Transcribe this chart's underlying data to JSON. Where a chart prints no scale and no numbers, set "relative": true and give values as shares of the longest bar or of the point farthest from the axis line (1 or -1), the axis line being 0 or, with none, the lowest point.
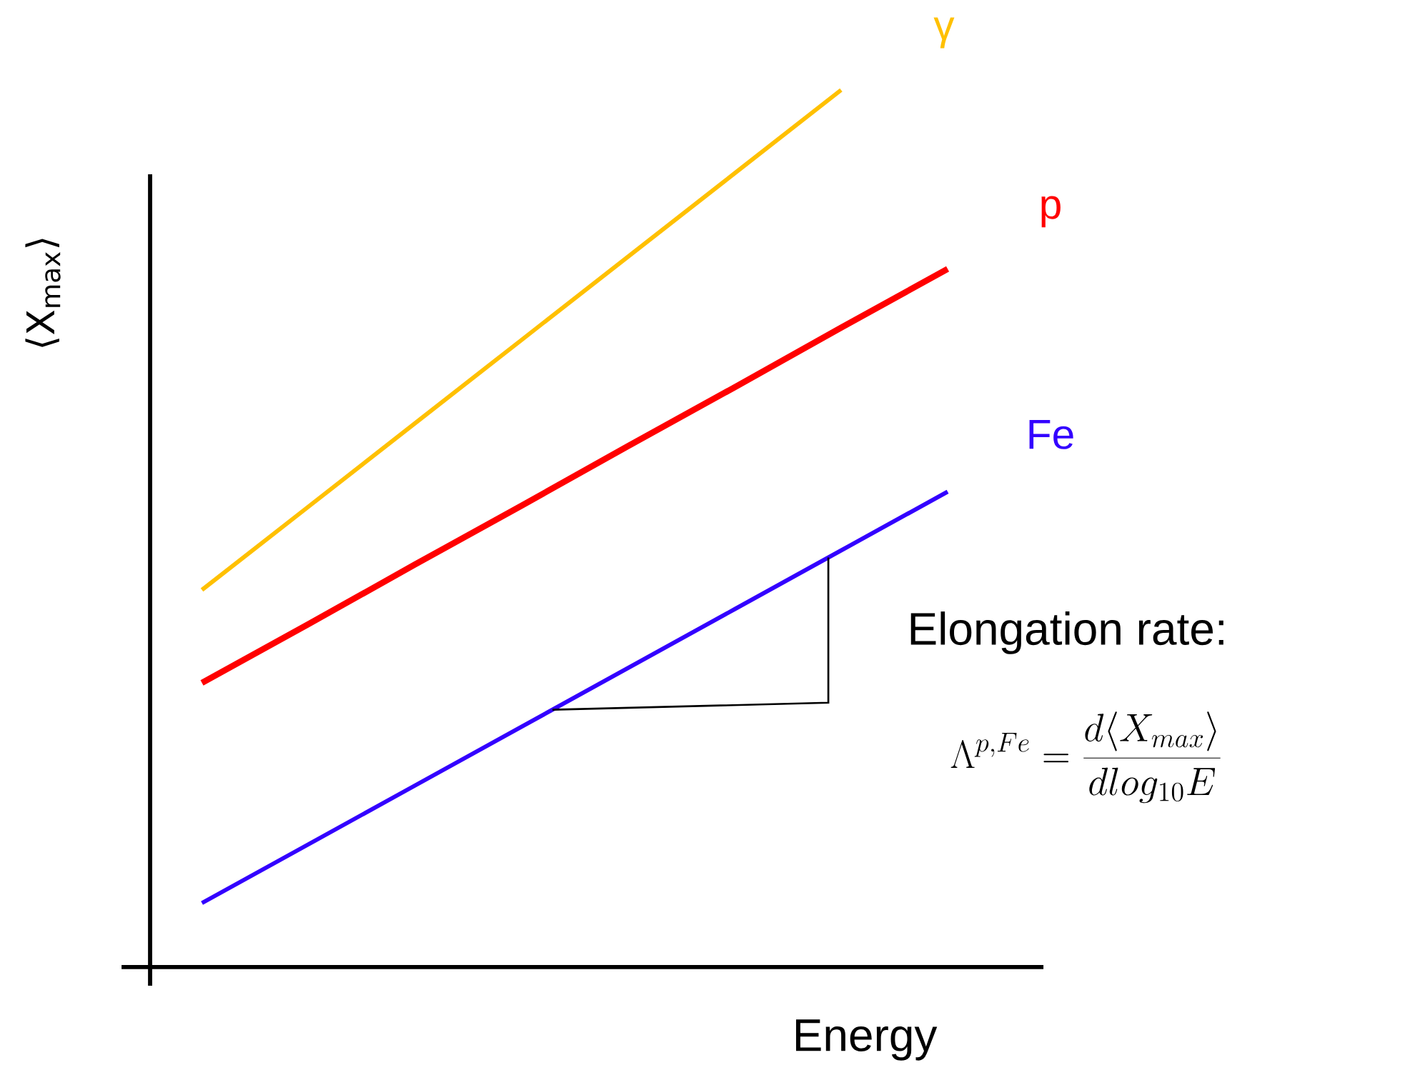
{
  "chart_data": {
    "type": "line",
    "relative": true,
    "xlabel": "Energy",
    "ylabel": "⟨X$_{max}$⟩",
    "marker": "none",
    "line_style": "solid",
    "categories": [
      null,
      null,
      null,
      null,
      null,
      null,
      null,
      null
    ],
    "series": [
      {
        "name": "γ",
        "color": "#ffc000",
        "values": [
          0.43,
          0.525,
          0.62,
          0.715,
          0.81,
          0.905,
          1.0,
          null
        ]
      },
      {
        "name": "p",
        "color": "#ff0000",
        "values": [
          0.324,
          0.391,
          0.459,
          0.526,
          0.594,
          0.661,
          0.729,
          0.796
        ]
      },
      {
        "name": "Fe",
        "color": "#3300ff",
        "values": [
          0.073,
          0.14,
          0.207,
          0.274,
          0.341,
          0.408,
          0.475,
          0.542
        ]
      }
    ],
    "annotations": [
      "Elongation rate:",
      "\\Lambda^{p,Fe} = \\frac{d\\langle X_{max}\\rangle}{d log_{10}E}"
    ]
  }
}
